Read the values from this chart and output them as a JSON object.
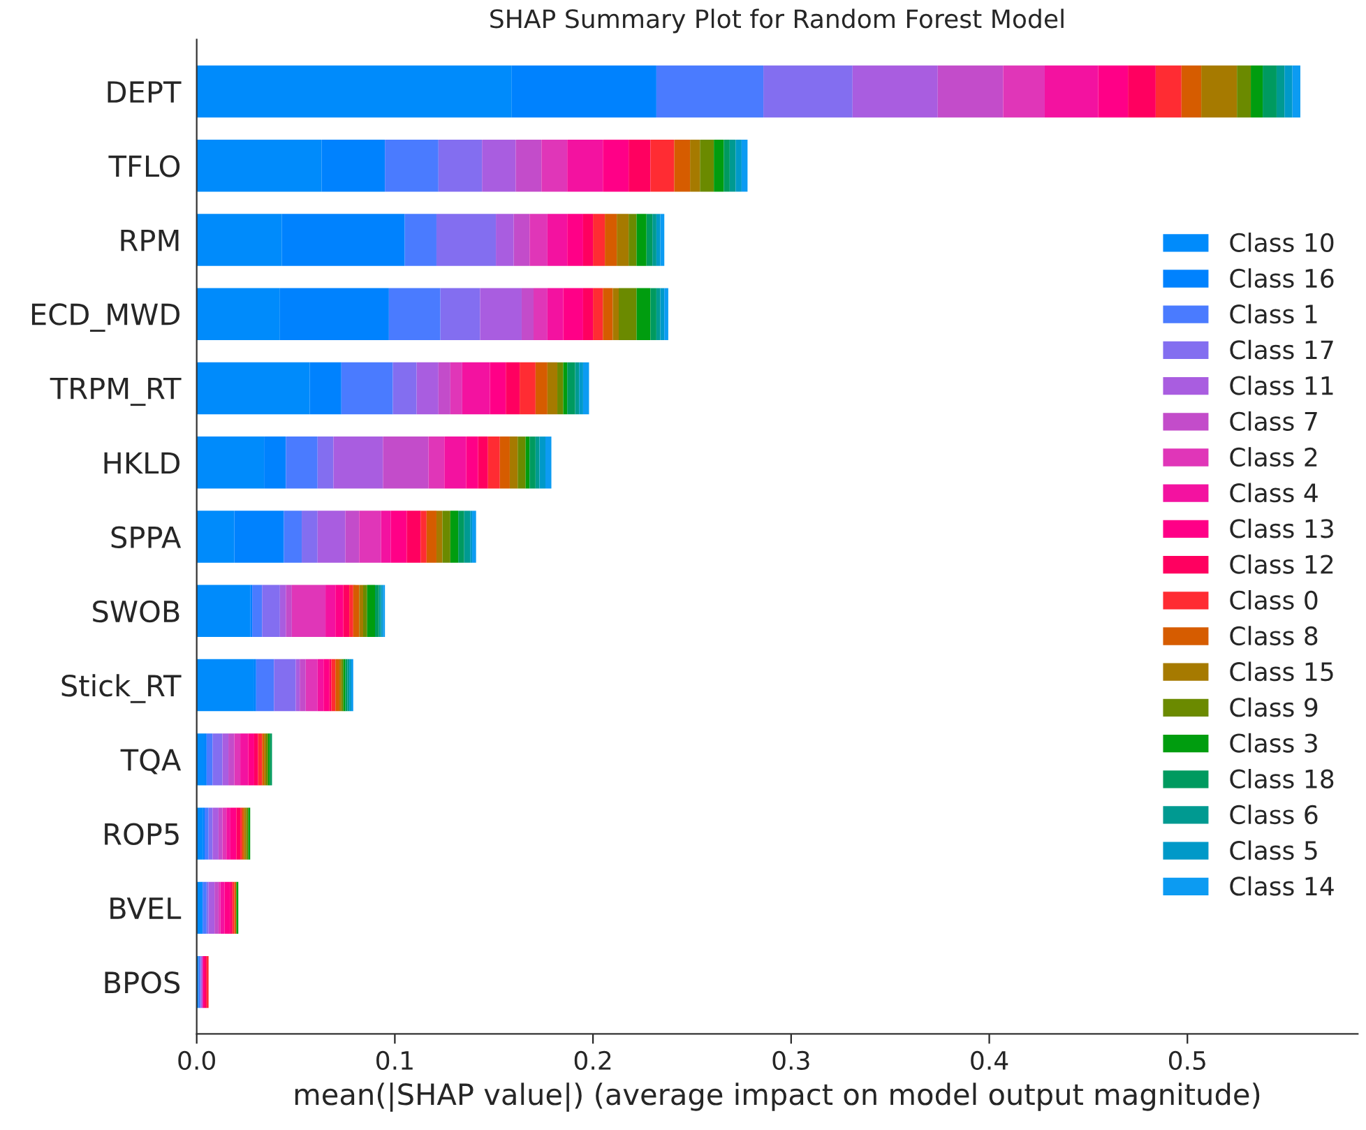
{
  "chart_data": {
    "type": "bar",
    "orientation": "horizontal",
    "stacked": true,
    "title": "SHAP Summary Plot for Random Forest Model",
    "xlabel": "mean(|SHAP value|) (average impact on model output magnitude)",
    "categories": [
      "DEPT",
      "TFLO",
      "RPM",
      "ECD_MWD",
      "TRPM_RT",
      "HKLD",
      "SPPA",
      "SWOB",
      "Stick_RT",
      "TQA",
      "ROP5",
      "BVEL",
      "BPOS"
    ],
    "xlim": [
      0,
      0.586
    ],
    "xticks": [
      {
        "value": 0,
        "label": "0.0"
      },
      0.1,
      0.2,
      0.3,
      0.4,
      0.5
    ],
    "grid": false,
    "legend": "right",
    "series": [
      {
        "name": "Class 10",
        "color": "#008bfb",
        "values": [
          0.159,
          0.063,
          0.043,
          0.042,
          0.057,
          0.034,
          0.019,
          0.027,
          0.029,
          0.004,
          0.003,
          0.003,
          0.001
        ]
      },
      {
        "name": "Class 16",
        "color": "#0082fe",
        "values": [
          0.073,
          0.032,
          0.062,
          0.055,
          0.016,
          0.011,
          0.025,
          0.001,
          0.001,
          0.001,
          0.001,
          0,
          0
        ]
      },
      {
        "name": "Class 1",
        "color": "#4a7bff",
        "values": [
          0.054,
          0.027,
          0.016,
          0.026,
          0.026,
          0.016,
          0.009,
          0.005,
          0.009,
          0.003,
          0.002,
          0.002,
          0.001
        ]
      },
      {
        "name": "Class 17",
        "color": "#836ef0",
        "values": [
          0.045,
          0.022,
          0.03,
          0.02,
          0.012,
          0.008,
          0.008,
          0.009,
          0.011,
          0.005,
          0.002,
          0.001,
          0
        ]
      },
      {
        "name": "Class 11",
        "color": "#a95de0",
        "values": [
          0.043,
          0.017,
          0.009,
          0.021,
          0.011,
          0.025,
          0.014,
          0.003,
          0.002,
          0.003,
          0.003,
          0.003,
          0.001
        ]
      },
      {
        "name": "Class 7",
        "color": "#c34cca",
        "values": [
          0.033,
          0.013,
          0.008,
          0.006,
          0.006,
          0.023,
          0.007,
          0.003,
          0.003,
          0.003,
          0.002,
          0.002,
          0
        ]
      },
      {
        "name": "Class 2",
        "color": "#e036b8",
        "values": [
          0.021,
          0.013,
          0.009,
          0.007,
          0.006,
          0.008,
          0.011,
          0.017,
          0.006,
          0.003,
          0.002,
          0.001,
          0
        ]
      },
      {
        "name": "Class 4",
        "color": "#f312a0",
        "values": [
          0.027,
          0.018,
          0.01,
          0.008,
          0.014,
          0.011,
          0.005,
          0.005,
          0.003,
          0.004,
          0.002,
          0.002,
          0
        ]
      },
      {
        "name": "Class 13",
        "color": "#ff0087",
        "values": [
          0.015,
          0.013,
          0.008,
          0.01,
          0.008,
          0.006,
          0.008,
          0.004,
          0.003,
          0.003,
          0.003,
          0.003,
          0.001
        ]
      },
      {
        "name": "Class 12",
        "color": "#ff0060",
        "values": [
          0.014,
          0.011,
          0.005,
          0.005,
          0.007,
          0.005,
          0.007,
          0.003,
          0.001,
          0.002,
          0.002,
          0.001,
          0.001
        ]
      },
      {
        "name": "Class 0",
        "color": "#ff2c33",
        "values": [
          0.013,
          0.012,
          0.006,
          0.005,
          0.008,
          0.006,
          0.003,
          0.002,
          0.002,
          0.002,
          0.001,
          0.001,
          0.001
        ]
      },
      {
        "name": "Class 8",
        "color": "#d65c00",
        "values": [
          0.01,
          0.008,
          0.006,
          0.005,
          0.006,
          0.005,
          0.005,
          0.003,
          0.002,
          0.001,
          0.001,
          0.001,
          0
        ]
      },
      {
        "name": "Class 15",
        "color": "#a67a00",
        "values": [
          0.018,
          0.005,
          0.006,
          0.003,
          0.005,
          0.004,
          0.003,
          0.002,
          0.001,
          0.001,
          0.001,
          0,
          0
        ]
      },
      {
        "name": "Class 9",
        "color": "#6b8a00",
        "values": [
          0.007,
          0.007,
          0.004,
          0.009,
          0.003,
          0.004,
          0.004,
          0.002,
          0.001,
          0.001,
          0.001,
          0,
          0
        ]
      },
      {
        "name": "Class 3",
        "color": "#009d0f",
        "values": [
          0.006,
          0.005,
          0.005,
          0.007,
          0.002,
          0.002,
          0.004,
          0.004,
          0.001,
          0.001,
          0.001,
          0.001,
          0
        ]
      },
      {
        "name": "Class 18",
        "color": "#009a5f",
        "values": [
          0.007,
          0.003,
          0.003,
          0.003,
          0.004,
          0.003,
          0.003,
          0.002,
          0.001,
          0.001,
          0,
          0,
          0
        ]
      },
      {
        "name": "Class 6",
        "color": "#009a91",
        "values": [
          0.004,
          0.003,
          0.002,
          0.002,
          0.002,
          0.002,
          0.003,
          0.001,
          0.001,
          0,
          0,
          0,
          0
        ]
      },
      {
        "name": "Class 5",
        "color": "#0099c8",
        "values": [
          0.004,
          0.003,
          0.002,
          0.002,
          0.002,
          0.003,
          0.001,
          0.001,
          0.001,
          0,
          0,
          0,
          0
        ]
      },
      {
        "name": "Class 14",
        "color": "#0c9bf2",
        "values": [
          0.004,
          0.003,
          0.002,
          0.002,
          0.003,
          0.003,
          0.002,
          0.001,
          0.001,
          0,
          0,
          0,
          0
        ]
      }
    ]
  }
}
